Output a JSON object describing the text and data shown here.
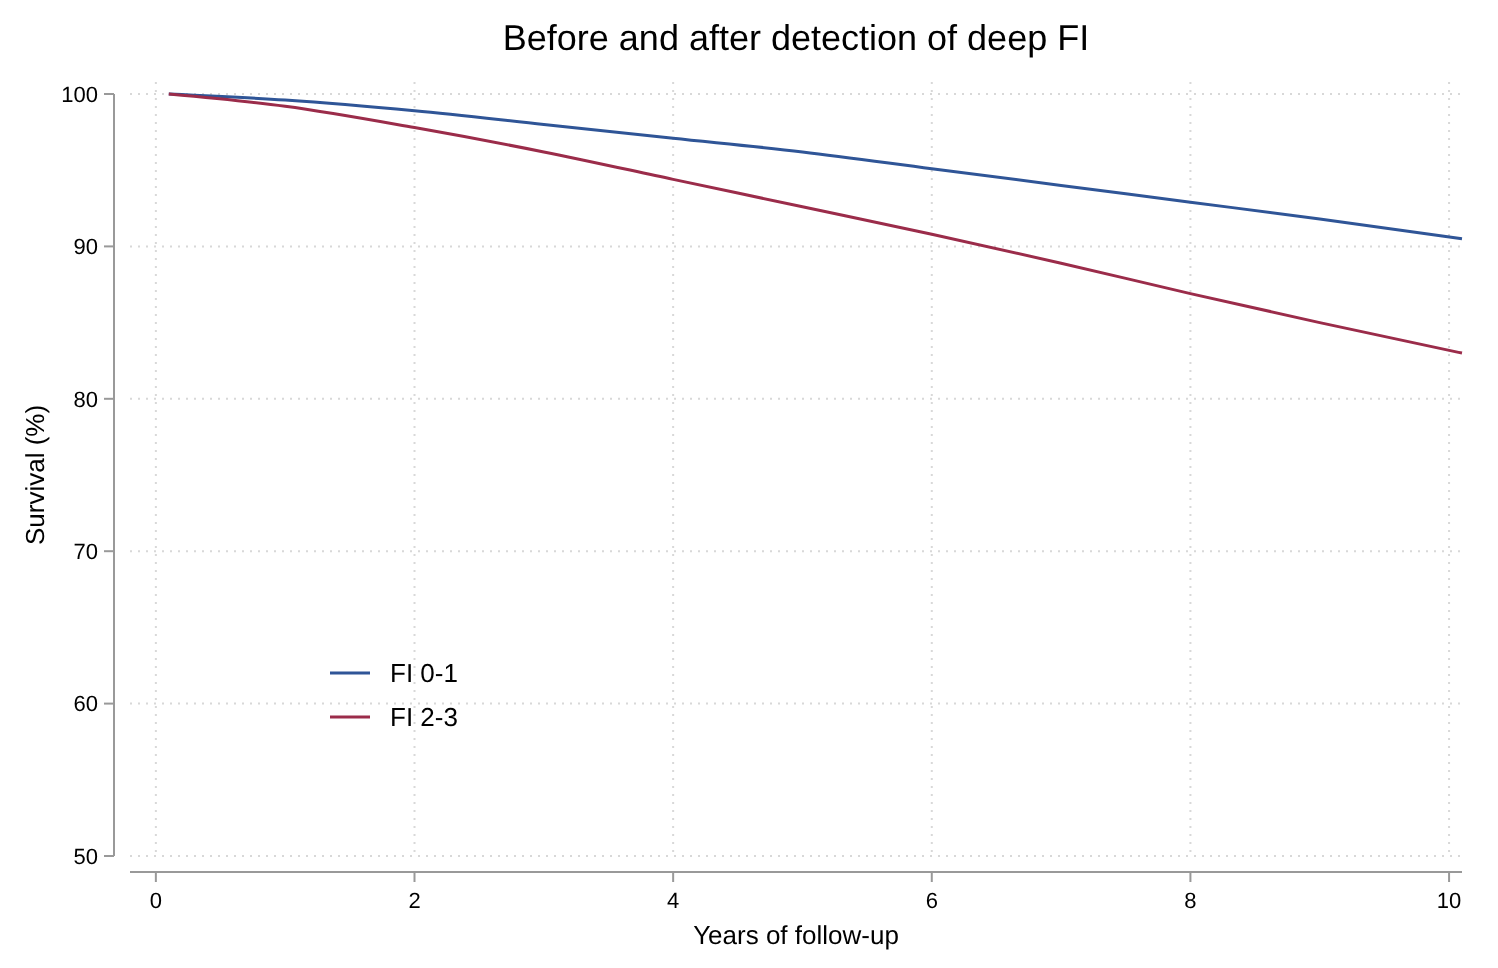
{
  "chart_data": {
    "type": "line",
    "title": "Before and after detection of deep FI",
    "xlabel": "Years of follow-up",
    "ylabel": "Survival (%)",
    "xlim": [
      -0.2,
      10.1
    ],
    "xticks": [
      0,
      2,
      4,
      6,
      8,
      10
    ],
    "ylim": [
      50,
      100
    ],
    "yticks": [
      50,
      60,
      70,
      80,
      90,
      100
    ],
    "grid": true,
    "legend": "bottom left",
    "line_style": "solid",
    "marker": "none",
    "series": [
      {
        "name": "FI 0-1",
        "color": "#2f5597",
        "x": [
          0.1,
          1,
          2,
          3,
          4,
          5,
          6,
          7,
          8,
          9,
          10.1
        ],
        "values": [
          100,
          99.6,
          98.9,
          98.0,
          97.1,
          96.2,
          95.1,
          94.0,
          92.9,
          91.8,
          90.5
        ]
      },
      {
        "name": "FI 2-3",
        "color": "#9b2c4a",
        "x": [
          0.1,
          1,
          2,
          3,
          4,
          5,
          6,
          7,
          8,
          9,
          10.1
        ],
        "values": [
          100,
          99.2,
          97.8,
          96.2,
          94.4,
          92.6,
          90.8,
          88.9,
          86.9,
          85.0,
          83.0
        ]
      }
    ]
  }
}
